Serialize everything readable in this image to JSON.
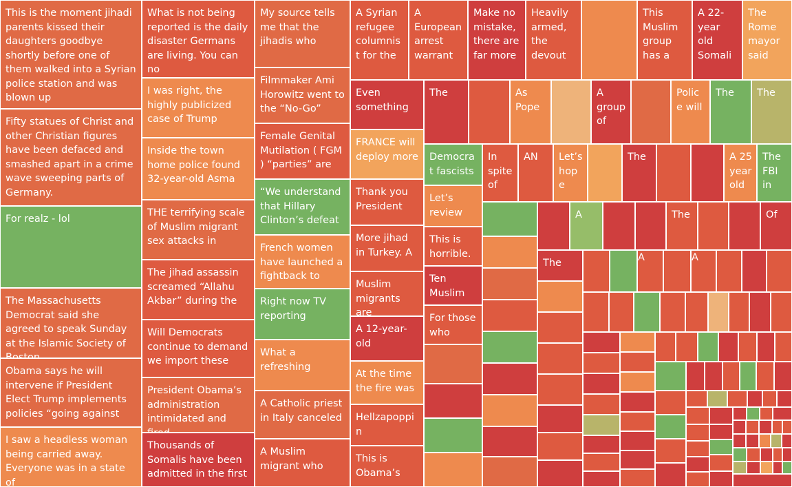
{
  "palette": {
    "red": "#cf3e3e",
    "red_orange": "#de5a40",
    "orange_red": "#e06a45",
    "orange": "#ee8a4e",
    "light_orange": "#f2a45c",
    "tan": "#eeb37a",
    "green": "#76b261",
    "light_green": "#96bd69",
    "olive": "#b8b46a"
  },
  "chart_data": {
    "type": "treemap",
    "tiles": [
      {
        "label": "This is the moment jihadi parents kissed their daughters goodbye shortly before one of them walked into a Syrian police station and was blown up",
        "color": "orange_red"
      },
      {
        "label": "Fifty statues of Christ and other Christian figures have been defaced and smashed apart in a crime wave sweeping parts of Germany.",
        "color": "orange_red"
      },
      {
        "label": "For realz - lol",
        "color": "green"
      },
      {
        "label": "The Massachusetts Democrat said she agreed to speak Sunday at the Islamic Society of Boston",
        "color": "orange_red"
      },
      {
        "label": "Obama says he will intervene if President Elect Trump implements policies “going against",
        "color": "orange_red"
      },
      {
        "label": "I saw a headless woman being carried away. Everyone was in a state of",
        "color": "orange"
      },
      {
        "label": "What is not being reported is the daily disaster Germans are living. You can no",
        "color": "red_orange"
      },
      {
        "label": "I was right, the highly publicized case of Trump",
        "color": "orange"
      },
      {
        "label": "Inside the town home police found 32-year-old Asma",
        "color": "orange"
      },
      {
        "label": "THE terrifying scale of Muslim migrant sex attacks in",
        "color": "orange_red"
      },
      {
        "label": "The jihad assassin screamed “Allahu Akbar” during the",
        "color": "red_orange"
      },
      {
        "label": "Will Democrats continue to demand we import these",
        "color": "red_orange"
      },
      {
        "label": "President Obama’s administration intimidated and fired",
        "color": "orange_red"
      },
      {
        "label": "Thousands of Somalis have been admitted in the first",
        "color": "red"
      },
      {
        "label": "My source tells me that the jihadis who",
        "color": "orange_red"
      },
      {
        "label": "Filmmaker Ami Horowitz went to the “No-Go”",
        "color": "orange_red"
      },
      {
        "label": "Female Genital Mutilation ( FGM ) “parties” are",
        "color": "red_orange"
      },
      {
        "label": "“We understand that Hillary Clinton’s defeat",
        "color": "green"
      },
      {
        "label": "French women have launched a fightback to",
        "color": "orange"
      },
      {
        "label": "Right now TV reporting",
        "color": "green"
      },
      {
        "label": "What a refreshing",
        "color": "orange"
      },
      {
        "label": "A Catholic priest in Italy canceled",
        "color": "orange_red"
      },
      {
        "label": "A Muslim migrant who",
        "color": "red_orange"
      },
      {
        "label": "A Syrian refugee columnist for the",
        "color": "red_orange"
      },
      {
        "label": "A European arrest warrant",
        "color": "red_orange"
      },
      {
        "label": "Make no mistake, there are far more",
        "color": "red"
      },
      {
        "label": "Heavily armed, the devout",
        "color": "red_orange"
      },
      {
        "label": "",
        "color": "orange"
      },
      {
        "label": "This Muslim group has a",
        "color": "red_orange"
      },
      {
        "label": "A 22-year old Somali",
        "color": "red"
      },
      {
        "label": "The Rome mayor said",
        "color": "light_orange"
      },
      {
        "label": "Even something",
        "color": "red"
      },
      {
        "label": "The",
        "color": "red"
      },
      {
        "label": "",
        "color": "red_orange"
      },
      {
        "label": "As Pope",
        "color": "orange"
      },
      {
        "label": "",
        "color": "tan"
      },
      {
        "label": "A group of",
        "color": "red"
      },
      {
        "label": "",
        "color": "orange_red"
      },
      {
        "label": "Police will",
        "color": "orange"
      },
      {
        "label": "The",
        "color": "green"
      },
      {
        "label": "The",
        "color": "olive"
      },
      {
        "label": "FRANCE will deploy more",
        "color": "light_orange"
      },
      {
        "label": "Thank you President",
        "color": "red_orange"
      },
      {
        "label": "More jihad in Turkey. A",
        "color": "red_orange"
      },
      {
        "label": "Muslim migrants are",
        "color": "red_orange"
      },
      {
        "label": "A 12-year-old",
        "color": "red"
      },
      {
        "label": "At the time the fire was",
        "color": "orange"
      },
      {
        "label": "Hellzapoppin",
        "color": "red_orange"
      },
      {
        "label": "This is Obama’s",
        "color": "red_orange"
      },
      {
        "label": "Democrat fascists",
        "color": "green"
      },
      {
        "label": "In spite of",
        "color": "red_orange"
      },
      {
        "label": "AN",
        "color": "red_orange"
      },
      {
        "label": "Let’s hope",
        "color": "orange"
      },
      {
        "label": "",
        "color": "light_orange"
      },
      {
        "label": "The",
        "color": "red"
      },
      {
        "label": "",
        "color": "red_orange"
      },
      {
        "label": "",
        "color": "red"
      },
      {
        "label": "A 25 year old",
        "color": "orange"
      },
      {
        "label": "The FBI in",
        "color": "green"
      },
      {
        "label": "Let’s review",
        "color": "orange"
      },
      {
        "label": "This is horrible.",
        "color": "red_orange"
      },
      {
        "label": "Ten Muslim",
        "color": "red"
      },
      {
        "label": "For those who",
        "color": "red_orange"
      },
      {
        "label": "",
        "color": "orange_red"
      },
      {
        "label": "",
        "color": "red"
      },
      {
        "label": "",
        "color": "green"
      },
      {
        "label": "",
        "color": "orange"
      },
      {
        "label": "",
        "color": "green"
      },
      {
        "label": "",
        "color": "orange"
      },
      {
        "label": "",
        "color": "orange_red"
      },
      {
        "label": "",
        "color": "red_orange"
      },
      {
        "label": "",
        "color": "green"
      },
      {
        "label": "",
        "color": "red"
      },
      {
        "label": "",
        "color": "orange"
      },
      {
        "label": "",
        "color": "red"
      },
      {
        "label": "",
        "color": "orange_red"
      },
      {
        "label": "",
        "color": "red"
      },
      {
        "label": "A",
        "color": "light_green"
      },
      {
        "label": "",
        "color": "red"
      },
      {
        "label": "",
        "color": "red"
      },
      {
        "label": "The",
        "color": "red_orange"
      },
      {
        "label": "",
        "color": "red_orange"
      },
      {
        "label": "",
        "color": "red"
      },
      {
        "label": "Of",
        "color": "red"
      },
      {
        "label": "The",
        "color": "red"
      },
      {
        "label": "",
        "color": "red_orange"
      },
      {
        "label": "",
        "color": "green"
      },
      {
        "label": "A",
        "color": "red_orange"
      },
      {
        "label": "",
        "color": "red_orange"
      },
      {
        "label": "A",
        "color": "red_orange"
      },
      {
        "label": "",
        "color": "red_orange"
      },
      {
        "label": "",
        "color": "red"
      },
      {
        "label": "",
        "color": "red_orange"
      },
      {
        "label": "",
        "color": "orange"
      },
      {
        "label": "",
        "color": "red_orange"
      },
      {
        "label": "",
        "color": "red_orange"
      },
      {
        "label": "",
        "color": "red_orange"
      },
      {
        "label": "",
        "color": "red"
      },
      {
        "label": "",
        "color": "red_orange"
      },
      {
        "label": "",
        "color": "red"
      },
      {
        "label": "",
        "color": "red_orange"
      },
      {
        "label": "",
        "color": "red_orange"
      },
      {
        "label": "",
        "color": "green"
      },
      {
        "label": "",
        "color": "red_orange"
      },
      {
        "label": "",
        "color": "red_orange"
      },
      {
        "label": "",
        "color": "tan"
      },
      {
        "label": "",
        "color": "red_orange"
      },
      {
        "label": "",
        "color": "red"
      },
      {
        "label": "",
        "color": "red_orange"
      },
      {
        "label": "",
        "color": "red"
      },
      {
        "label": "",
        "color": "red_orange"
      },
      {
        "label": "",
        "color": "red"
      },
      {
        "label": "",
        "color": "red_orange"
      },
      {
        "label": "",
        "color": "olive"
      },
      {
        "label": "",
        "color": "red"
      },
      {
        "label": "",
        "color": "red_orange"
      },
      {
        "label": "",
        "color": "red"
      },
      {
        "label": "",
        "color": "orange"
      },
      {
        "label": "",
        "color": "red_orange"
      },
      {
        "label": "",
        "color": "red_orange"
      },
      {
        "label": "",
        "color": "green"
      },
      {
        "label": "",
        "color": "red"
      },
      {
        "label": "",
        "color": "red_orange"
      },
      {
        "label": "",
        "color": "red"
      },
      {
        "label": "",
        "color": "red_orange"
      },
      {
        "label": "",
        "color": "red_orange"
      },
      {
        "label": "",
        "color": "orange"
      },
      {
        "label": "",
        "color": "red"
      },
      {
        "label": "",
        "color": "red_orange"
      },
      {
        "label": "",
        "color": "red"
      },
      {
        "label": "",
        "color": "red"
      },
      {
        "label": "",
        "color": "red_orange"
      },
      {
        "label": "",
        "color": "green"
      },
      {
        "label": "",
        "color": "red"
      },
      {
        "label": "",
        "color": "red"
      },
      {
        "label": "",
        "color": "red_orange"
      },
      {
        "label": "",
        "color": "green"
      },
      {
        "label": "",
        "color": "red_orange"
      },
      {
        "label": "",
        "color": "red"
      },
      {
        "label": "",
        "color": "red_orange"
      },
      {
        "label": "",
        "color": "green"
      },
      {
        "label": "",
        "color": "red_orange"
      },
      {
        "label": "",
        "color": "red"
      },
      {
        "label": "",
        "color": "red_orange"
      },
      {
        "label": "",
        "color": "olive"
      },
      {
        "label": "",
        "color": "red_orange"
      },
      {
        "label": "",
        "color": "red"
      },
      {
        "label": "",
        "color": "red_orange"
      },
      {
        "label": "",
        "color": "red"
      },
      {
        "label": "",
        "color": "red_orange"
      },
      {
        "label": "",
        "color": "red"
      },
      {
        "label": "",
        "color": "red"
      },
      {
        "label": "",
        "color": "green"
      },
      {
        "label": "",
        "color": "red_orange"
      },
      {
        "label": "",
        "color": "red"
      },
      {
        "label": "",
        "color": "red_orange"
      },
      {
        "label": "",
        "color": "red_orange"
      },
      {
        "label": "",
        "color": "red"
      },
      {
        "label": "",
        "color": "red_orange"
      },
      {
        "label": "",
        "color": "red"
      },
      {
        "label": "",
        "color": "green"
      },
      {
        "label": "",
        "color": "red_orange"
      },
      {
        "label": "",
        "color": "red"
      },
      {
        "label": "",
        "color": "red"
      },
      {
        "label": "",
        "color": "red_orange"
      },
      {
        "label": "",
        "color": "red"
      },
      {
        "label": "",
        "color": "red_orange"
      },
      {
        "label": "",
        "color": "red_orange"
      },
      {
        "label": "",
        "color": "red"
      },
      {
        "label": "",
        "color": "red"
      },
      {
        "label": "",
        "color": "orange"
      },
      {
        "label": "",
        "color": "olive"
      },
      {
        "label": "",
        "color": "red"
      },
      {
        "label": "",
        "color": "green"
      },
      {
        "label": "",
        "color": "red_orange"
      },
      {
        "label": "",
        "color": "red"
      },
      {
        "label": "",
        "color": "red_orange"
      },
      {
        "label": "",
        "color": "red"
      },
      {
        "label": "",
        "color": "olive"
      },
      {
        "label": "",
        "color": "red"
      },
      {
        "label": "",
        "color": "light_orange"
      },
      {
        "label": "",
        "color": "red"
      },
      {
        "label": "",
        "color": "green"
      },
      {
        "label": "",
        "color": "red"
      },
      {
        "label": "",
        "color": "red"
      },
      {
        "label": "",
        "color": "red"
      },
      {
        "label": "",
        "color": "green"
      },
      {
        "label": "",
        "color": "red"
      },
      {
        "label": "",
        "color": "red"
      },
      {
        "label": "",
        "color": "green"
      },
      {
        "label": "",
        "color": "red"
      }
    ]
  }
}
